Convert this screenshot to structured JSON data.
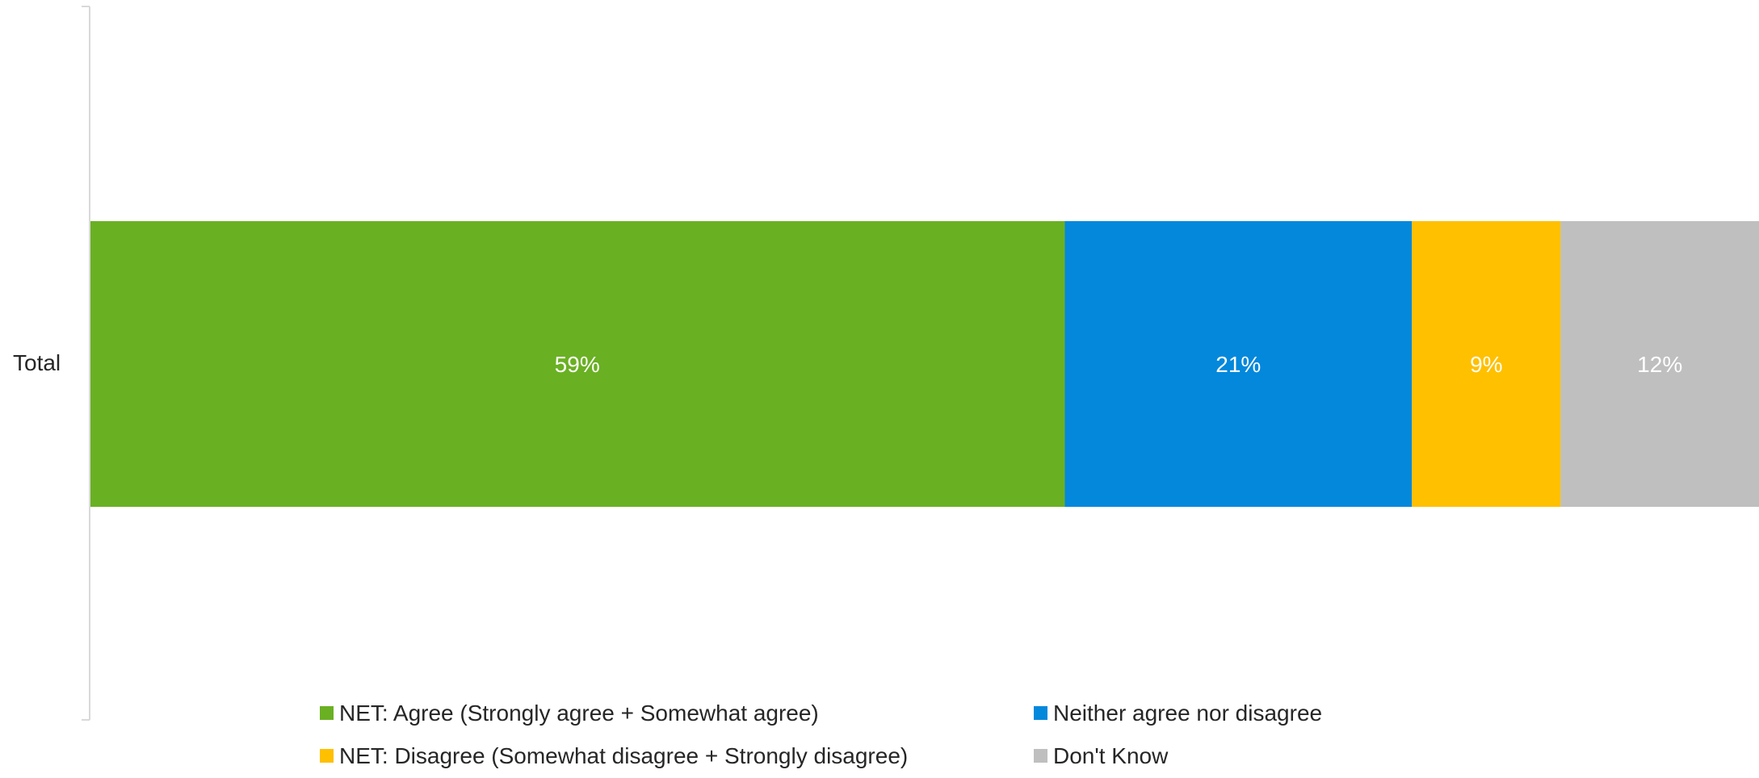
{
  "chart_data": {
    "type": "bar",
    "orientation": "horizontal",
    "stacked": true,
    "categories": [
      "Total"
    ],
    "series": [
      {
        "name": "NET: Agree (Strongly agree + Somewhat agree)",
        "values": [
          59
        ],
        "label": "59%",
        "color": "#6AB023"
      },
      {
        "name": "Neither agree nor disagree",
        "values": [
          21
        ],
        "label": "21%",
        "color": "#0388DC"
      },
      {
        "name": "NET: Disagree (Somewhat disagree + Strongly disagree)",
        "values": [
          9
        ],
        "label": "9%",
        "color": "#FFC000"
      },
      {
        "name": "Don't Know",
        "values": [
          12
        ],
        "label": "12%",
        "color": "#BFBFBF"
      }
    ],
    "xlim": [
      0,
      101
    ],
    "title": "",
    "xlabel": "",
    "ylabel": "",
    "grid": false,
    "legend_position": "bottom",
    "axis_color": "#D9D9D9"
  }
}
